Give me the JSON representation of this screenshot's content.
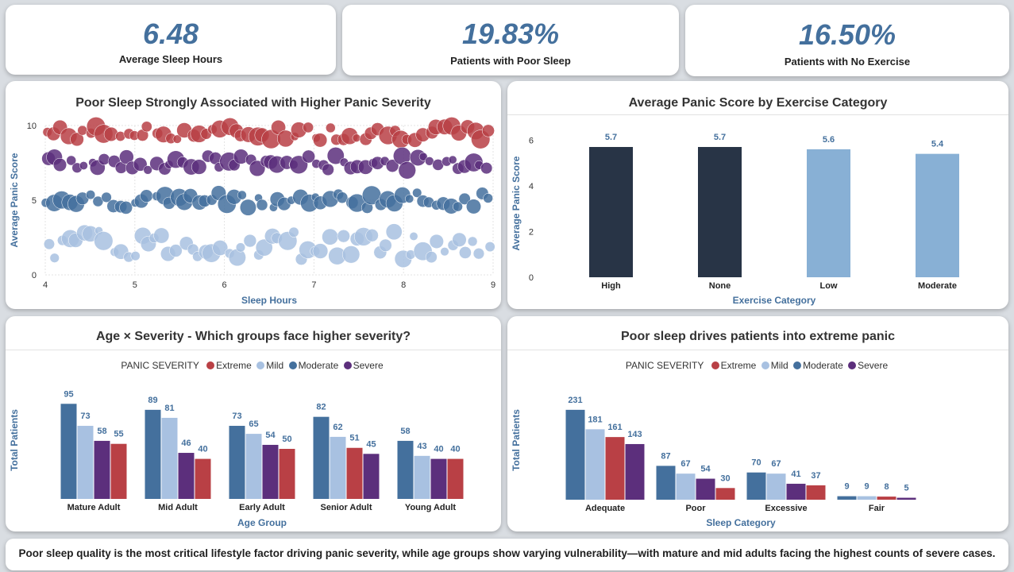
{
  "kpis": [
    {
      "value": "6.48",
      "label": "Average Sleep Hours"
    },
    {
      "value": "19.83%",
      "label": "Patients with Poor Sleep"
    },
    {
      "value": "16.50%",
      "label": "Patients with No Exercise"
    }
  ],
  "colors": {
    "extreme": "#b94045",
    "mild": "#a8c1e1",
    "moderate": "#44709d",
    "severe": "#5c2f7c",
    "dark_bar": "#283446",
    "light_bar": "#88b0d5",
    "accent_text": "#44709d"
  },
  "scatter": {
    "title": "Poor Sleep Strongly Associated with Higher Panic Severity",
    "xlabel": "Sleep Hours",
    "ylabel": "Average Panic Score",
    "x_ticks": [
      "4",
      "5",
      "6",
      "7",
      "8",
      "9"
    ],
    "y_ticks": [
      "0",
      "5",
      "10"
    ]
  },
  "exercise": {
    "title": "Average Panic Score by Exercise Category",
    "xlabel": "Exercise Category",
    "ylabel": "Average Panic Score",
    "y_ticks": [
      "0",
      "2",
      "4",
      "6"
    ]
  },
  "age_chart": {
    "title": "Age × Severity - Which groups face higher severity?",
    "xlabel": "Age Group",
    "ylabel": "Total Patients",
    "legend_title": "PANIC SEVERITY",
    "legend": [
      "Extreme",
      "Mild",
      "Moderate",
      "Severe"
    ]
  },
  "sleep_chart": {
    "title": "Poor sleep drives patients into extreme panic",
    "xlabel": "Sleep Category",
    "ylabel": "Total Patients",
    "legend_title": "PANIC SEVERITY",
    "legend": [
      "Extreme",
      "Mild",
      "Moderate",
      "Severe"
    ]
  },
  "footer": {
    "text": "Poor sleep quality is the most critical lifestyle factor driving panic severity, while age groups show varying vulnerability—with mature and mid adults facing the highest counts of severe cases."
  },
  "chart_data": [
    {
      "type": "scatter",
      "title": "Poor Sleep Strongly Associated with Higher Panic Severity",
      "xlabel": "Sleep Hours",
      "ylabel": "Average Panic Score",
      "xlim": [
        4,
        9
      ],
      "ylim": [
        0,
        10
      ],
      "grid": true,
      "series": [
        {
          "color": "#b94045",
          "band": [
            9,
            10
          ]
        },
        {
          "color": "#5c2f7c",
          "band": [
            7,
            8
          ]
        },
        {
          "color": "#44709d",
          "band": [
            4.5,
            5.5
          ]
        },
        {
          "color": "#a8c1e1",
          "band": [
            1,
            3
          ]
        }
      ]
    },
    {
      "type": "bar",
      "title": "Average Panic Score by Exercise Category",
      "xlabel": "Exercise Category",
      "ylabel": "Average Panic Score",
      "categories": [
        "High",
        "None",
        "Low",
        "Moderate"
      ],
      "values": [
        5.7,
        5.7,
        5.6,
        5.4
      ],
      "labels": [
        "5.7",
        "5.7",
        "5.6",
        "5.4"
      ],
      "ylim": [
        0,
        6.5
      ],
      "bar_colors": [
        "#283446",
        "#283446",
        "#88b0d5",
        "#88b0d5"
      ]
    },
    {
      "type": "bar",
      "title": "Age × Severity - Which groups face higher severity?",
      "xlabel": "Age Group",
      "ylabel": "Total Patients",
      "categories": [
        "Mature Adult",
        "Mid Adult",
        "Early Adult",
        "Senior Adult",
        "Young Adult"
      ],
      "bars": [
        [
          {
            "value": 95,
            "color": "#44709d"
          },
          {
            "value": 73,
            "color": "#a8c1e1"
          },
          {
            "value": 58,
            "color": "#5c2f7c"
          },
          {
            "value": 55,
            "color": "#b94045"
          }
        ],
        [
          {
            "value": 89,
            "color": "#44709d"
          },
          {
            "value": 81,
            "color": "#a8c1e1"
          },
          {
            "value": 46,
            "color": "#5c2f7c"
          },
          {
            "value": 40,
            "color": "#b94045"
          }
        ],
        [
          {
            "value": 73,
            "color": "#44709d"
          },
          {
            "value": 65,
            "color": "#a8c1e1"
          },
          {
            "value": 54,
            "color": "#5c2f7c"
          },
          {
            "value": 50,
            "color": "#b94045"
          }
        ],
        [
          {
            "value": 82,
            "color": "#44709d"
          },
          {
            "value": 62,
            "color": "#a8c1e1"
          },
          {
            "value": 51,
            "color": "#b94045"
          },
          {
            "value": 45,
            "color": "#5c2f7c"
          }
        ],
        [
          {
            "value": 58,
            "color": "#44709d"
          },
          {
            "value": 43,
            "color": "#a8c1e1"
          },
          {
            "value": 40,
            "color": "#5c2f7c"
          },
          {
            "value": 40,
            "color": "#b94045"
          }
        ]
      ],
      "ylim": [
        0,
        100
      ],
      "legend_position": "top"
    },
    {
      "type": "bar",
      "title": "Poor sleep drives patients into extreme panic",
      "xlabel": "Sleep Category",
      "ylabel": "Total Patients",
      "categories": [
        "Adequate",
        "Poor",
        "Excessive",
        "Fair"
      ],
      "bars": [
        [
          {
            "value": 231,
            "color": "#44709d"
          },
          {
            "value": 181,
            "color": "#a8c1e1"
          },
          {
            "value": 161,
            "color": "#b94045"
          },
          {
            "value": 143,
            "color": "#5c2f7c"
          }
        ],
        [
          {
            "value": 87,
            "color": "#44709d"
          },
          {
            "value": 67,
            "color": "#a8c1e1"
          },
          {
            "value": 54,
            "color": "#5c2f7c"
          },
          {
            "value": 30,
            "color": "#b94045"
          }
        ],
        [
          {
            "value": 70,
            "color": "#44709d"
          },
          {
            "value": 67,
            "color": "#a8c1e1"
          },
          {
            "value": 41,
            "color": "#5c2f7c"
          },
          {
            "value": 37,
            "color": "#b94045"
          }
        ],
        [
          {
            "value": 9,
            "color": "#44709d"
          },
          {
            "value": 9,
            "color": "#a8c1e1"
          },
          {
            "value": 8,
            "color": "#b94045"
          },
          {
            "value": 5,
            "color": "#5c2f7c"
          }
        ]
      ],
      "ylim": [
        0,
        245
      ],
      "legend_position": "top"
    }
  ]
}
